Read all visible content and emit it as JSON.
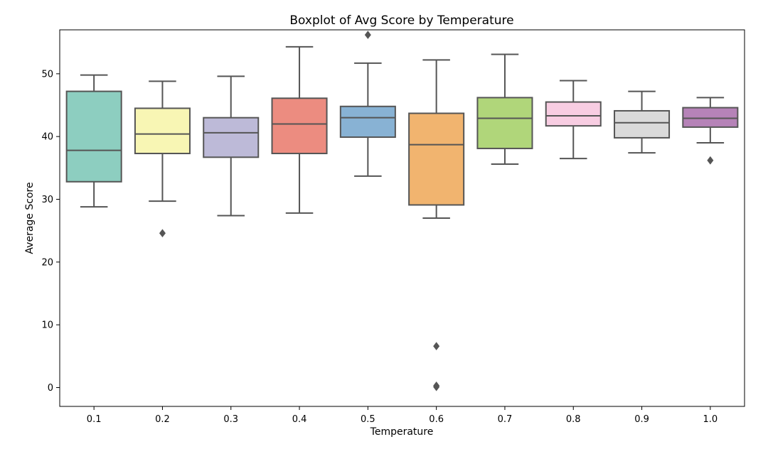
{
  "chart_data": {
    "type": "boxplot",
    "title": "Boxplot of Avg Score by Temperature",
    "xlabel": "Temperature",
    "ylabel": "Average Score",
    "ylim": [
      -3,
      57
    ],
    "yticks": [
      0,
      10,
      20,
      30,
      40,
      50
    ],
    "grid": false,
    "categories": [
      "0.1",
      "0.2",
      "0.3",
      "0.4",
      "0.5",
      "0.6",
      "0.7",
      "0.8",
      "0.9",
      "1.0"
    ],
    "boxes": [
      {
        "whisker_low": 28.8,
        "q1": 32.8,
        "median": 37.8,
        "q3": 47.2,
        "whisker_high": 49.8,
        "outliers": [],
        "color": "#8dcec0"
      },
      {
        "whisker_low": 29.7,
        "q1": 37.3,
        "median": 40.4,
        "q3": 44.5,
        "whisker_high": 48.8,
        "outliers": [
          24.6
        ],
        "color": "#f8f6b4"
      },
      {
        "whisker_low": 27.4,
        "q1": 36.7,
        "median": 40.6,
        "q3": 43.0,
        "whisker_high": 49.6,
        "outliers": [],
        "color": "#bdbad8"
      },
      {
        "whisker_low": 27.8,
        "q1": 37.3,
        "median": 42.0,
        "q3": 46.1,
        "whisker_high": 54.3,
        "outliers": [],
        "color": "#ec8c80"
      },
      {
        "whisker_low": 33.7,
        "q1": 39.9,
        "median": 43.0,
        "q3": 44.8,
        "whisker_high": 51.7,
        "outliers": [
          56.2
        ],
        "color": "#88b2d4"
      },
      {
        "whisker_low": 27.0,
        "q1": 29.1,
        "median": 38.7,
        "q3": 43.7,
        "whisker_high": 52.2,
        "outliers": [
          6.6,
          0.3,
          0.1
        ],
        "color": "#f1b46f"
      },
      {
        "whisker_low": 35.6,
        "q1": 38.1,
        "median": 42.9,
        "q3": 46.2,
        "whisker_high": 53.1,
        "outliers": [],
        "color": "#b0d67a"
      },
      {
        "whisker_low": 36.5,
        "q1": 41.7,
        "median": 43.3,
        "q3": 45.5,
        "whisker_high": 48.9,
        "outliers": [],
        "color": "#f8cde2"
      },
      {
        "whisker_low": 37.4,
        "q1": 39.8,
        "median": 42.2,
        "q3": 44.1,
        "whisker_high": 47.2,
        "outliers": [],
        "color": "#dadada"
      },
      {
        "whisker_low": 39.0,
        "q1": 41.5,
        "median": 42.9,
        "q3": 44.6,
        "whisker_high": 46.2,
        "outliers": [
          36.2
        ],
        "color": "#b683b8"
      }
    ],
    "line_color": "#555555"
  }
}
